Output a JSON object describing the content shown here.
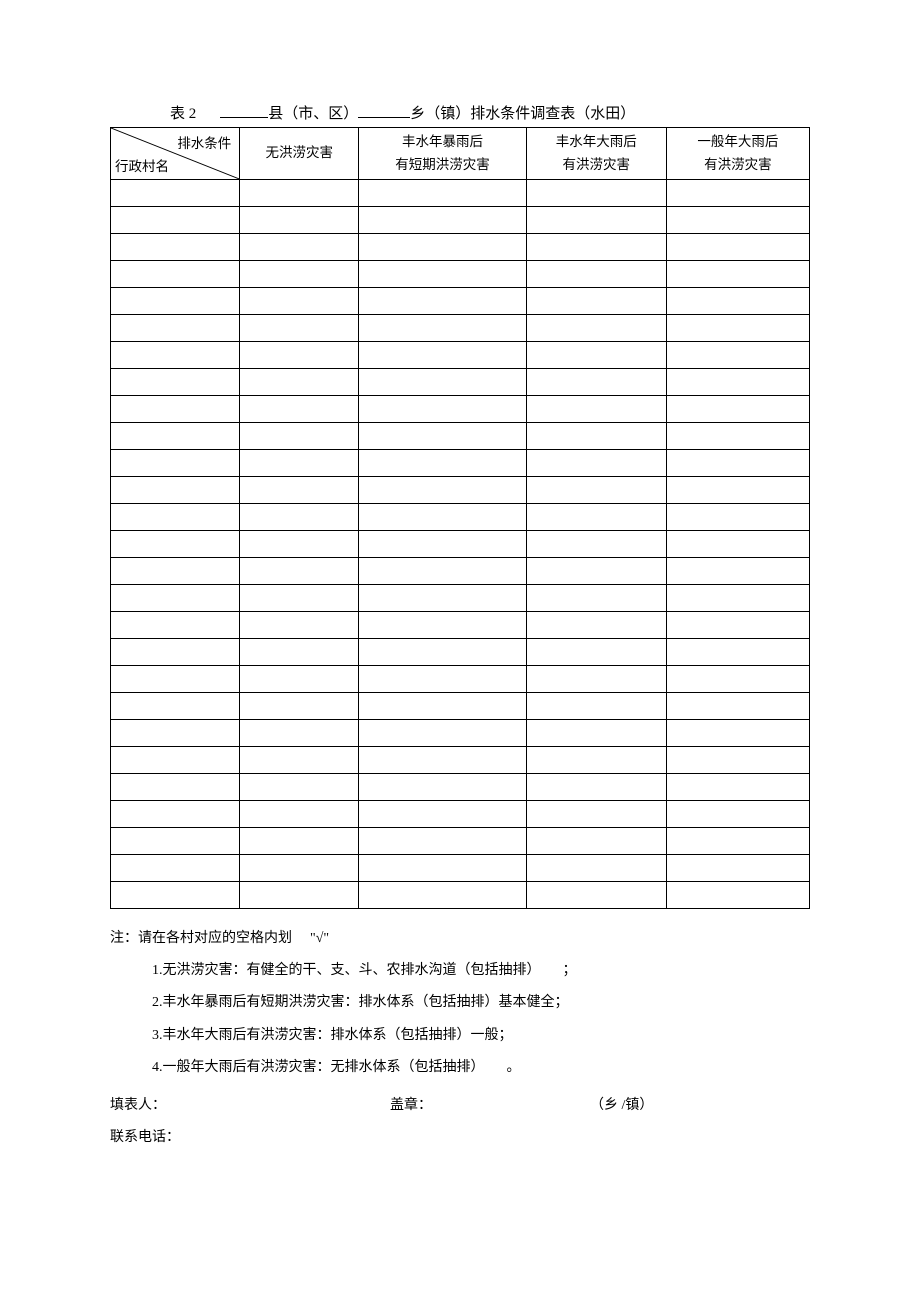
{
  "title": {
    "table_num": "表 2",
    "county_suffix": "县（市、区）",
    "town_suffix": "乡（镇）排水条件调查表（水田）"
  },
  "header": {
    "diag_top": "排水条件",
    "diag_bottom": "行政村名",
    "col2": "无洪涝灾害",
    "col3_l1": "丰水年暴雨后",
    "col3_l2": "有短期洪涝灾害",
    "col4_l1": "丰水年大雨后",
    "col4_l2": "有洪涝灾害",
    "col5_l1": "一般年大雨后",
    "col5_l2": "有洪涝灾害"
  },
  "empty_row_count": 27,
  "notes": {
    "intro_prefix": "注：",
    "intro_body_a": "请在各村对应的空格内划",
    "intro_body_b": "\"√\"",
    "n1": "1.无洪涝灾害：有健全的干、支、斗、农排水沟道（包括抽排）",
    "n1_tail": "；",
    "n2": "2.丰水年暴雨后有短期洪涝灾害：排水体系（包括抽排）基本健全；",
    "n3": "3.丰水年大雨后有洪涝灾害：排水体系（包括抽排）一般；",
    "n4": "4.一般年大雨后有洪涝灾害：无排水体系（包括抽排）",
    "n4_tail": "。"
  },
  "footer": {
    "filler": "填表人：",
    "seal": "盖章：",
    "unit": "（乡 /镇）",
    "phone": "联系电话："
  }
}
